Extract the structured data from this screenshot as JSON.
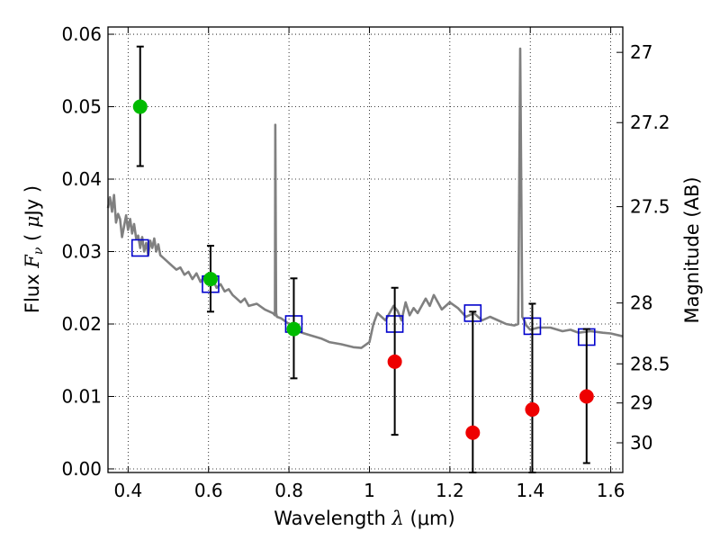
{
  "chart_data": {
    "type": "scatter",
    "title": "",
    "xlabel": "Wavelength  λ (μm)",
    "xlabel_parts": {
      "prefix": "Wavelength  ",
      "var": "λ",
      "unit": " (μm)"
    },
    "ylabel": "Flux  Fν  ( μJy )",
    "ylabel_parts": {
      "prefix": "Flux  ",
      "var": "F",
      "sub": "ν",
      "unit_open": "  ( ",
      "mu": "μ",
      "unit_close": "Jy )"
    },
    "y2label": "Magnitude (AB)",
    "xlim": [
      0.35,
      1.63
    ],
    "ylim": [
      -0.0005,
      0.061
    ],
    "xticks": [
      0.4,
      0.6,
      0.8,
      1.0,
      1.2,
      1.4,
      1.6
    ],
    "xtick_labels": [
      "0.4",
      "0.6",
      "0.8",
      "1",
      "1.2",
      "1.4",
      "1.6"
    ],
    "yticks": [
      0.0,
      0.01,
      0.02,
      0.03,
      0.04,
      0.05,
      0.06
    ],
    "ytick_labels": [
      "0.00",
      "0.01",
      "0.02",
      "0.03",
      "0.04",
      "0.05",
      "0.06"
    ],
    "y2ticks": [
      {
        "label": "27",
        "flux": 0.0575
      },
      {
        "label": "27.2",
        "flux": 0.0478
      },
      {
        "label": "27.5",
        "flux": 0.0362
      },
      {
        "label": "28",
        "flux": 0.0229
      },
      {
        "label": "28.5",
        "flux": 0.0145
      },
      {
        "label": "29",
        "flux": 0.0091
      },
      {
        "label": "30",
        "flux": 0.0036
      }
    ],
    "grid": true,
    "colors": {
      "spectrum": "#808080",
      "model_box": "#0000cc",
      "detection": "#00bb00",
      "non_detection": "#ee0000",
      "errorbar": "#000000"
    },
    "spectrum": {
      "x": [
        0.35,
        0.355,
        0.36,
        0.365,
        0.37,
        0.375,
        0.38,
        0.385,
        0.39,
        0.395,
        0.4,
        0.405,
        0.41,
        0.415,
        0.42,
        0.425,
        0.43,
        0.435,
        0.44,
        0.445,
        0.45,
        0.455,
        0.46,
        0.465,
        0.47,
        0.475,
        0.48,
        0.49,
        0.5,
        0.51,
        0.52,
        0.53,
        0.54,
        0.55,
        0.56,
        0.57,
        0.58,
        0.59,
        0.6,
        0.61,
        0.62,
        0.63,
        0.64,
        0.65,
        0.66,
        0.67,
        0.68,
        0.69,
        0.7,
        0.72,
        0.74,
        0.76,
        0.765,
        0.766,
        0.768,
        0.77,
        0.78,
        0.8,
        0.82,
        0.85,
        0.88,
        0.9,
        0.93,
        0.96,
        0.98,
        1.0,
        1.01,
        1.02,
        1.04,
        1.06,
        1.07,
        1.08,
        1.09,
        1.1,
        1.11,
        1.12,
        1.14,
        1.15,
        1.16,
        1.18,
        1.2,
        1.22,
        1.24,
        1.26,
        1.28,
        1.3,
        1.32,
        1.34,
        1.36,
        1.37,
        1.375,
        1.38,
        1.385,
        1.39,
        1.4,
        1.42,
        1.45,
        1.48,
        1.5,
        1.52,
        1.55,
        1.58,
        1.6,
        1.63
      ],
      "y": [
        0.036,
        0.0375,
        0.0355,
        0.0378,
        0.034,
        0.0352,
        0.0345,
        0.032,
        0.0335,
        0.035,
        0.033,
        0.0345,
        0.0325,
        0.0338,
        0.0318,
        0.0322,
        0.0305,
        0.032,
        0.03,
        0.0312,
        0.0295,
        0.0315,
        0.0305,
        0.0318,
        0.03,
        0.031,
        0.0295,
        0.029,
        0.0285,
        0.028,
        0.0275,
        0.0278,
        0.0268,
        0.0272,
        0.0262,
        0.027,
        0.0258,
        0.0266,
        0.0255,
        0.0262,
        0.025,
        0.0255,
        0.0245,
        0.0248,
        0.024,
        0.0235,
        0.023,
        0.0235,
        0.0225,
        0.0228,
        0.022,
        0.0215,
        0.0212,
        0.0475,
        0.0215,
        0.021,
        0.0208,
        0.02,
        0.019,
        0.0185,
        0.018,
        0.0175,
        0.0172,
        0.0168,
        0.0167,
        0.0175,
        0.02,
        0.0215,
        0.0205,
        0.0225,
        0.0218,
        0.0205,
        0.023,
        0.0212,
        0.0222,
        0.0215,
        0.0235,
        0.0225,
        0.024,
        0.022,
        0.023,
        0.0222,
        0.021,
        0.0215,
        0.0205,
        0.021,
        0.0205,
        0.02,
        0.0198,
        0.02,
        0.058,
        0.021,
        0.0205,
        0.0198,
        0.0192,
        0.0195,
        0.0195,
        0.019,
        0.0192,
        0.0188,
        0.019,
        0.0188,
        0.0187,
        0.0183
      ]
    },
    "model_boxes": {
      "x": [
        0.43,
        0.605,
        0.812,
        1.063,
        1.257,
        1.405,
        1.54
      ],
      "y": [
        0.0305,
        0.0255,
        0.02,
        0.02,
        0.0215,
        0.0197,
        0.0182
      ]
    },
    "photometry": [
      {
        "x": 0.43,
        "y": 0.05,
        "err_lo": 0.0418,
        "err_hi": 0.0583,
        "detected": true
      },
      {
        "x": 0.605,
        "y": 0.0262,
        "err_lo": 0.0217,
        "err_hi": 0.0308,
        "detected": true
      },
      {
        "x": 0.812,
        "y": 0.0193,
        "err_lo": 0.0125,
        "err_hi": 0.0263,
        "detected": true
      },
      {
        "x": 1.063,
        "y": 0.0148,
        "err_lo": 0.0047,
        "err_hi": 0.025,
        "detected": false
      },
      {
        "x": 1.257,
        "y": 0.005,
        "err_lo": -0.0005,
        "err_hi": 0.0217,
        "detected": false
      },
      {
        "x": 1.405,
        "y": 0.0082,
        "err_lo": -0.0005,
        "err_hi": 0.0228,
        "detected": false
      },
      {
        "x": 1.54,
        "y": 0.01,
        "err_lo": 0.0008,
        "err_hi": 0.0193,
        "detected": false
      }
    ]
  }
}
